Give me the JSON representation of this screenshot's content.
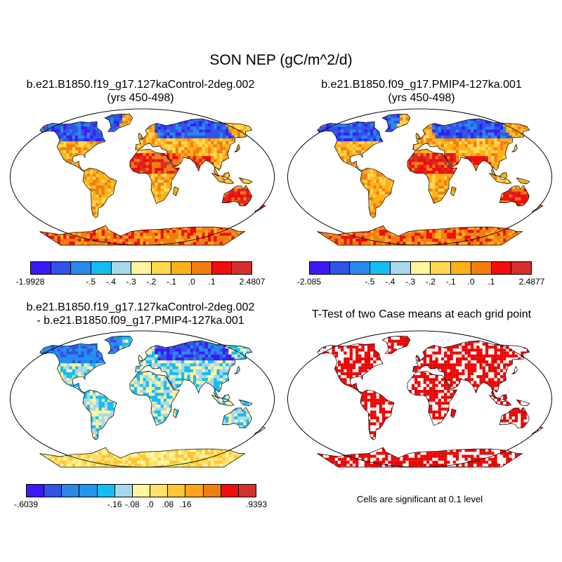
{
  "title": "SON NEP (gC/m^2/d)",
  "panels": [
    {
      "title_line1": "b.e21.B1850.f19_g17.127kaControl-2deg.002",
      "title_line2": "(yrs 450-498)"
    },
    {
      "title_line1": "b.e21.B1850.f09_g17.PMIP4-127ka.001",
      "title_line2": "(yrs 450-498)"
    },
    {
      "title_line1": "b.e21.B1850.f19_g17.127kaControl-2deg.002",
      "title_line2": "- b.e21.B1850.f09_g17.PMIP4-127ka.001"
    },
    {
      "title_line1": "T-Test of two Case means at each grid point",
      "title_line2": ""
    }
  ],
  "colorbars": [
    {
      "colors": [
        "#3a1bf5",
        "#2f54e6",
        "#2a88ea",
        "#14bdf2",
        "#a8d8ee",
        "#fff59c",
        "#ffd84d",
        "#ffb01a",
        "#f27e12",
        "#f20c0c",
        "#d4302c"
      ],
      "tick_labels": [
        "-1.9928",
        "-.5",
        "-.4",
        "-.3",
        "-.2",
        "-.1",
        ".0",
        ".1",
        "2.4807"
      ]
    },
    {
      "colors": [
        "#3a1bf5",
        "#2f54e6",
        "#2a88ea",
        "#14bdf2",
        "#a8d8ee",
        "#fff59c",
        "#ffd84d",
        "#ffb01a",
        "#f27e12",
        "#f20c0c",
        "#d4302c"
      ],
      "tick_labels": [
        "-2.085",
        "-.5",
        "-.4",
        "-.3",
        "-.2",
        "-.1",
        ".0",
        ".1",
        "2.4877"
      ]
    },
    {
      "colors": [
        "#3a1bf5",
        "#2f54e6",
        "#2a88ea",
        "#2196ee",
        "#14bdf2",
        "#a8d8ee",
        "#fff59c",
        "#ffe06a",
        "#ffc533",
        "#ffa41a",
        "#f27e12",
        "#f20c0c",
        "#d4302c"
      ],
      "tick_labels": [
        "-.6039",
        "-.16",
        "-.08",
        ".0",
        ".08",
        ".16",
        ".9393"
      ]
    }
  ],
  "significance_note": "Cells are significant at 0.1 level",
  "style": {
    "significant_color": "#ee0000",
    "ocean_color": "#ffffff"
  }
}
